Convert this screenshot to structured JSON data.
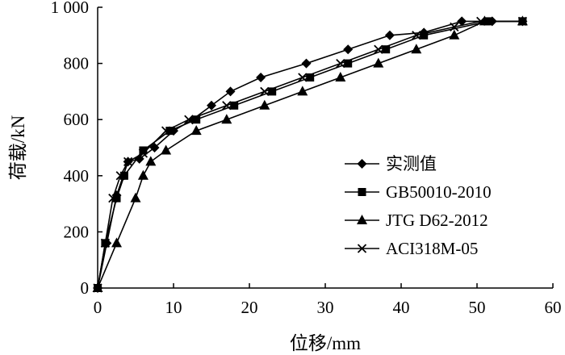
{
  "chart_data": {
    "type": "line",
    "title": "",
    "xlabel": "位移/mm",
    "ylabel": "荷载/kN",
    "xlim": [
      0,
      60
    ],
    "ylim": [
      0,
      1000
    ],
    "xticks": [
      0,
      10,
      20,
      30,
      40,
      50,
      60
    ],
    "yticks": [
      0,
      200,
      400,
      600,
      800,
      1000
    ],
    "xtick_labels": [
      "0",
      "10",
      "20",
      "30",
      "40",
      "50",
      "60"
    ],
    "ytick_labels": [
      "0",
      "200",
      "400",
      "600",
      "800",
      "1 000"
    ],
    "grid": false,
    "legend_position": "right",
    "series": [
      {
        "name": "实测值",
        "marker": "diamond",
        "x": [
          0,
          1.2,
          2.5,
          4.0,
          5.5,
          7.5,
          10.0,
          12.5,
          15.0,
          17.5,
          21.5,
          27.5,
          33.0,
          38.5,
          43.0,
          48.0,
          52.0,
          56.0
        ],
        "y": [
          0,
          160,
          330,
          450,
          460,
          500,
          560,
          600,
          650,
          700,
          750,
          800,
          850,
          900,
          910,
          950,
          950,
          950
        ]
      },
      {
        "name": "GB50010-2010",
        "marker": "square",
        "x": [
          0,
          1.0,
          2.5,
          3.5,
          6.0,
          9.5,
          13.0,
          18.0,
          23.0,
          28.0,
          33.0,
          38.0,
          43.0,
          51.5,
          56.0
        ],
        "y": [
          0,
          160,
          320,
          400,
          490,
          560,
          600,
          650,
          700,
          750,
          800,
          850,
          900,
          950,
          950
        ]
      },
      {
        "name": "JTG D62-2012",
        "marker": "triangle",
        "x": [
          0,
          2.5,
          5.0,
          6.0,
          7.0,
          9.0,
          13.0,
          17.0,
          22.0,
          27.0,
          32.0,
          37.0,
          42.0,
          47.0,
          51.0,
          56.0
        ],
        "y": [
          0,
          160,
          320,
          400,
          450,
          490,
          560,
          600,
          650,
          700,
          750,
          800,
          850,
          900,
          950,
          950
        ]
      },
      {
        "name": "ACI318M-05",
        "marker": "x",
        "x": [
          0,
          1.0,
          2.0,
          3.0,
          4.0,
          6.0,
          9.0,
          12.0,
          17.0,
          22.0,
          27.0,
          32.0,
          37.0,
          42.0,
          47.0,
          50.5,
          56.0
        ],
        "y": [
          0,
          160,
          320,
          400,
          450,
          480,
          560,
          600,
          650,
          700,
          750,
          800,
          850,
          900,
          930,
          950,
          950
        ]
      }
    ]
  }
}
